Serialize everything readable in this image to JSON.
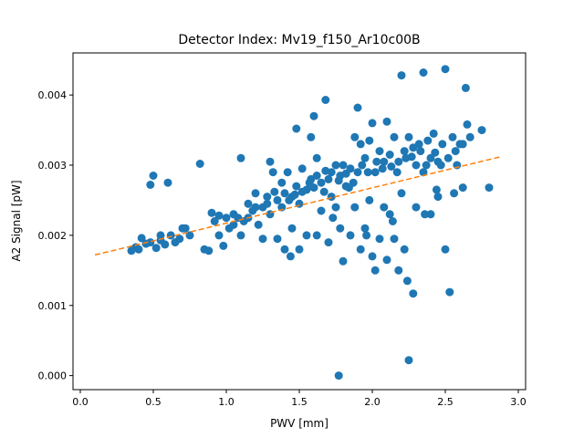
{
  "chart_data": {
    "type": "scatter",
    "title": "Detector Index: Mv19_f150_Ar10c00B",
    "xlabel": "PWV [mm]",
    "ylabel": "A2 Signal [pW]",
    "xlim": [
      -0.05,
      3.05
    ],
    "ylim": [
      -0.0002,
      0.0046
    ],
    "xticks": [
      0.0,
      0.5,
      1.0,
      1.5,
      2.0,
      2.5,
      3.0
    ],
    "xtick_labels": [
      "0.0",
      "0.5",
      "1.0",
      "1.5",
      "2.0",
      "2.5",
      "3.0"
    ],
    "yticks": [
      0.0,
      0.001,
      0.002,
      0.003,
      0.004
    ],
    "ytick_labels": [
      "0.000",
      "0.001",
      "0.002",
      "0.003",
      "0.004"
    ],
    "series": [
      {
        "name": "data",
        "color": "#1f77b4",
        "marker": "circle",
        "points": [
          [
            0.35,
            0.00178
          ],
          [
            0.38,
            0.00183
          ],
          [
            0.42,
            0.00196
          ],
          [
            0.45,
            0.00188
          ],
          [
            0.48,
            0.0019
          ],
          [
            0.48,
            0.00272
          ],
          [
            0.5,
            0.00285
          ],
          [
            0.52,
            0.00182
          ],
          [
            0.55,
            0.00193
          ],
          [
            0.58,
            0.00187
          ],
          [
            0.6,
            0.00275
          ],
          [
            0.62,
            0.002
          ],
          [
            0.65,
            0.0019
          ],
          [
            0.68,
            0.00195
          ],
          [
            0.7,
            0.0021
          ],
          [
            0.75,
            0.002
          ],
          [
            0.82,
            0.00302
          ],
          [
            0.85,
            0.0018
          ],
          [
            0.88,
            0.00178
          ],
          [
            0.9,
            0.00232
          ],
          [
            0.92,
            0.0022
          ],
          [
            0.95,
            0.002
          ],
          [
            0.98,
            0.00185
          ],
          [
            1.0,
            0.00225
          ],
          [
            1.02,
            0.0021
          ],
          [
            1.05,
            0.0023
          ],
          [
            1.08,
            0.00225
          ],
          [
            1.1,
            0.002
          ],
          [
            1.12,
            0.0022
          ],
          [
            1.15,
            0.00245
          ],
          [
            1.18,
            0.00235
          ],
          [
            1.2,
            0.0026
          ],
          [
            1.22,
            0.00215
          ],
          [
            1.25,
            0.0024
          ],
          [
            1.25,
            0.00195
          ],
          [
            1.28,
            0.00255
          ],
          [
            1.3,
            0.0023
          ],
          [
            1.3,
            0.00305
          ],
          [
            1.32,
            0.0029
          ],
          [
            1.35,
            0.0025
          ],
          [
            1.35,
            0.00195
          ],
          [
            1.38,
            0.00275
          ],
          [
            1.4,
            0.0026
          ],
          [
            1.4,
            0.0018
          ],
          [
            1.42,
            0.0029
          ],
          [
            1.45,
            0.00255
          ],
          [
            1.45,
            0.0021
          ],
          [
            1.48,
            0.0027
          ],
          [
            1.48,
            0.00352
          ],
          [
            1.5,
            0.00245
          ],
          [
            1.5,
            0.0018
          ],
          [
            1.52,
            0.00295
          ],
          [
            1.55,
            0.00265
          ],
          [
            1.55,
            0.002
          ],
          [
            1.58,
            0.0028
          ],
          [
            1.6,
            0.00268
          ],
          [
            1.6,
            0.0037
          ],
          [
            1.62,
            0.0031
          ],
          [
            1.62,
            0.002
          ],
          [
            1.65,
            0.00275
          ],
          [
            1.65,
            0.00235
          ],
          [
            1.68,
            0.00292
          ],
          [
            1.68,
            0.00393
          ],
          [
            1.7,
            0.0028
          ],
          [
            1.7,
            0.0019
          ],
          [
            1.72,
            0.00255
          ],
          [
            1.75,
            0.003
          ],
          [
            1.75,
            0.0024
          ],
          [
            1.77,
            0.0
          ],
          [
            1.78,
            0.00285
          ],
          [
            1.78,
            0.0021
          ],
          [
            1.8,
            0.003
          ],
          [
            1.8,
            0.00163
          ],
          [
            1.82,
            0.0027
          ],
          [
            1.85,
            0.00295
          ],
          [
            1.85,
            0.002
          ],
          [
            1.88,
            0.0034
          ],
          [
            1.88,
            0.0024
          ],
          [
            1.9,
            0.0029
          ],
          [
            1.9,
            0.00382
          ],
          [
            1.92,
            0.0033
          ],
          [
            1.92,
            0.0018
          ],
          [
            1.95,
            0.0031
          ],
          [
            1.95,
            0.0021
          ],
          [
            1.98,
            0.00335
          ],
          [
            1.98,
            0.0025
          ],
          [
            2.0,
            0.0036
          ],
          [
            2.0,
            0.0017
          ],
          [
            2.02,
            0.0029
          ],
          [
            2.02,
            0.0015
          ],
          [
            2.05,
            0.0032
          ],
          [
            2.05,
            0.00195
          ],
          [
            2.08,
            0.00305
          ],
          [
            2.08,
            0.0024
          ],
          [
            2.1,
            0.00362
          ],
          [
            2.1,
            0.00165
          ],
          [
            2.12,
            0.00315
          ],
          [
            2.12,
            0.0023
          ],
          [
            2.15,
            0.0034
          ],
          [
            2.15,
            0.00195
          ],
          [
            2.18,
            0.00305
          ],
          [
            2.2,
            0.0026
          ],
          [
            2.2,
            0.00428
          ],
          [
            2.22,
            0.0032
          ],
          [
            2.22,
            0.0018
          ],
          [
            2.24,
            0.00135
          ],
          [
            2.25,
            0.0034
          ],
          [
            2.25,
            0.00022
          ],
          [
            2.28,
            0.00325
          ],
          [
            2.28,
            0.00117
          ],
          [
            2.3,
            0.003
          ],
          [
            2.3,
            0.0024
          ],
          [
            2.32,
            0.0033
          ],
          [
            2.35,
            0.0029
          ],
          [
            2.35,
            0.00432
          ],
          [
            2.38,
            0.00335
          ],
          [
            2.4,
            0.0031
          ],
          [
            2.4,
            0.0023
          ],
          [
            2.42,
            0.00345
          ],
          [
            2.45,
            0.00305
          ],
          [
            2.45,
            0.00255
          ],
          [
            2.48,
            0.0033
          ],
          [
            2.5,
            0.00437
          ],
          [
            2.5,
            0.0018
          ],
          [
            2.52,
            0.0031
          ],
          [
            2.53,
            0.00119
          ],
          [
            2.55,
            0.0034
          ],
          [
            2.58,
            0.003
          ],
          [
            2.6,
            0.0033
          ],
          [
            2.62,
            0.0033
          ],
          [
            2.64,
            0.0041
          ],
          [
            2.65,
            0.00358
          ],
          [
            2.67,
            0.0034
          ],
          [
            2.75,
            0.0035
          ],
          [
            2.8,
            0.00268
          ],
          [
            0.4,
            0.0018
          ],
          [
            0.55,
            0.002
          ],
          [
            0.72,
            0.0021
          ],
          [
            0.95,
            0.00228
          ],
          [
            1.05,
            0.00215
          ],
          [
            1.15,
            0.00225
          ],
          [
            1.2,
            0.0024
          ],
          [
            1.28,
            0.00245
          ],
          [
            1.33,
            0.00262
          ],
          [
            1.38,
            0.0024
          ],
          [
            1.43,
            0.0025
          ],
          [
            1.47,
            0.00258
          ],
          [
            1.52,
            0.00262
          ],
          [
            1.57,
            0.00275
          ],
          [
            1.62,
            0.00285
          ],
          [
            1.67,
            0.00262
          ],
          [
            1.72,
            0.0029
          ],
          [
            1.77,
            0.00278
          ],
          [
            1.82,
            0.00288
          ],
          [
            1.87,
            0.00275
          ],
          [
            1.93,
            0.003
          ],
          [
            1.97,
            0.0029
          ],
          [
            2.03,
            0.00305
          ],
          [
            2.07,
            0.00295
          ],
          [
            2.13,
            0.00298
          ],
          [
            2.17,
            0.0029
          ],
          [
            2.23,
            0.0031
          ],
          [
            2.27,
            0.00312
          ],
          [
            2.33,
            0.0032
          ],
          [
            2.37,
            0.003
          ],
          [
            2.43,
            0.00318
          ],
          [
            2.47,
            0.003
          ],
          [
            2.57,
            0.0032
          ],
          [
            1.1,
            0.0031
          ],
          [
            1.44,
            0.0017
          ],
          [
            1.58,
            0.0034
          ],
          [
            1.73,
            0.00225
          ],
          [
            1.96,
            0.002
          ],
          [
            2.14,
            0.0022
          ],
          [
            2.18,
            0.0015
          ],
          [
            2.36,
            0.0023
          ],
          [
            2.44,
            0.00265
          ],
          [
            2.56,
            0.0026
          ],
          [
            2.62,
            0.00268
          ],
          [
            1.84,
            0.00268
          ]
        ]
      },
      {
        "name": "fit",
        "color": "#ff7f0e",
        "line_style": "dashed",
        "x": [
          0.1,
          2.88
        ],
        "y": [
          0.00172,
          0.00312
        ]
      }
    ],
    "grid": false,
    "legend": "none"
  }
}
